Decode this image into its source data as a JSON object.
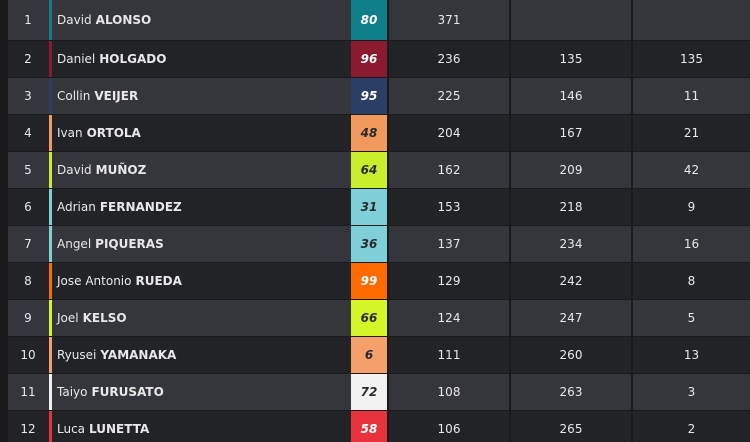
{
  "table": {
    "rows": [
      {
        "pos": 1,
        "first": "David",
        "last": "ALONSO",
        "number": 80,
        "points": 371,
        "color": "#0f7f8a"
      },
      {
        "pos": 2,
        "first": "Daniel",
        "last": "HOLGADO",
        "number": 96,
        "points": 236,
        "gap": 135,
        "prev": 135,
        "color": "#8b1a30"
      },
      {
        "pos": 3,
        "first": "Collin",
        "last": "VEIJER",
        "number": 95,
        "points": 225,
        "gap": 146,
        "prev": 11,
        "color": "#2b3e63"
      },
      {
        "pos": 4,
        "first": "Ivan",
        "last": "ORTOLA",
        "number": 48,
        "points": 204,
        "gap": 167,
        "prev": 21,
        "color": "#f2995e"
      },
      {
        "pos": 5,
        "first": "David",
        "last": "MUÑOZ",
        "number": 64,
        "points": 162,
        "gap": 209,
        "prev": 42,
        "color": "#c9ef2c"
      },
      {
        "pos": 6,
        "first": "Adrian",
        "last": "FERNANDEZ",
        "number": 31,
        "points": 153,
        "gap": 218,
        "prev": 9,
        "color": "#7fcfd9"
      },
      {
        "pos": 7,
        "first": "Angel",
        "last": "PIQUERAS",
        "number": 36,
        "points": 137,
        "gap": 234,
        "prev": 16,
        "color": "#7fcfd9"
      },
      {
        "pos": 8,
        "first": "Jose Antonio",
        "last": "RUEDA",
        "number": 99,
        "points": 129,
        "gap": 242,
        "prev": 8,
        "color": "#ff6a00"
      },
      {
        "pos": 9,
        "first": "Joel",
        "last": "KELSO",
        "number": 66,
        "points": 124,
        "gap": 247,
        "prev": 5,
        "color": "#d4f527"
      },
      {
        "pos": 10,
        "first": "Ryusei",
        "last": "YAMANAKA",
        "number": 6,
        "points": 111,
        "gap": 260,
        "prev": 13,
        "color": "#f5a06a"
      },
      {
        "pos": 11,
        "first": "Taiyo",
        "last": "FURUSATO",
        "number": 72,
        "points": 108,
        "gap": 263,
        "prev": 3,
        "color": "#f2f2f2"
      },
      {
        "pos": 12,
        "first": "Luca",
        "last": "LUNETTA",
        "number": 58,
        "points": 106,
        "gap": 265,
        "prev": 2,
        "color": "#e8323c"
      }
    ]
  }
}
